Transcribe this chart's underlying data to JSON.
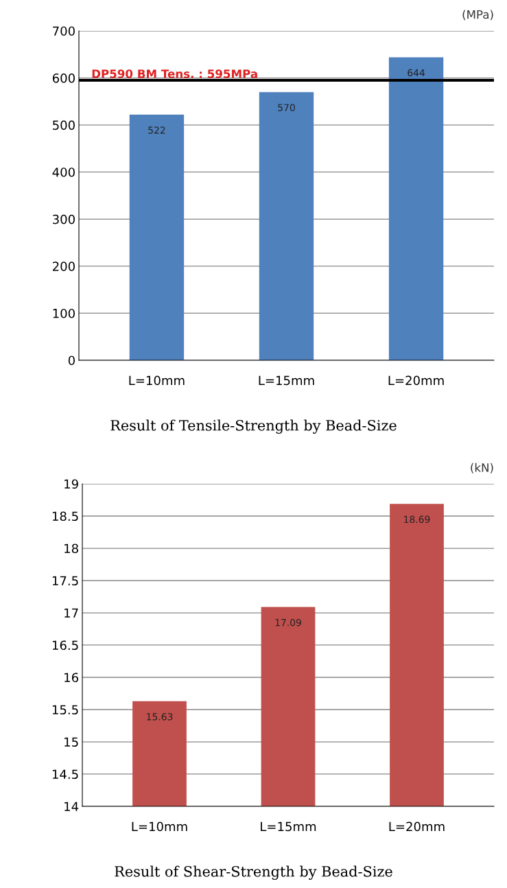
{
  "chart_data": [
    {
      "type": "bar",
      "title": "Result of Tensile-Strength by Bead-Size",
      "ylabel": "(MPa)",
      "categories": [
        "L=10mm",
        "L=15mm",
        "L=20mm"
      ],
      "values": [
        522,
        570,
        644
      ],
      "color": "#4f81bd",
      "ylim": [
        0,
        700
      ],
      "yticks": [
        0,
        100,
        200,
        300,
        400,
        500,
        600,
        700
      ],
      "grid": "y",
      "data_labels": true,
      "ref_lines": [
        {
          "axis": "y",
          "value": 595,
          "label": "DP590 BM Tens. : 595MPa",
          "color": "#000000"
        }
      ]
    },
    {
      "type": "bar",
      "title": "Result of Shear-Strength by Bead-Size",
      "ylabel": "(kN)",
      "categories": [
        "L=10mm",
        "L=15mm",
        "L=20mm"
      ],
      "values": [
        15.63,
        17.09,
        18.69
      ],
      "color": "#c0504d",
      "ylim": [
        14,
        19
      ],
      "yticks": [
        14,
        14.5,
        15,
        15.5,
        16,
        16.5,
        17,
        17.5,
        18,
        18.5,
        19
      ],
      "grid": "y",
      "data_labels": true
    }
  ]
}
